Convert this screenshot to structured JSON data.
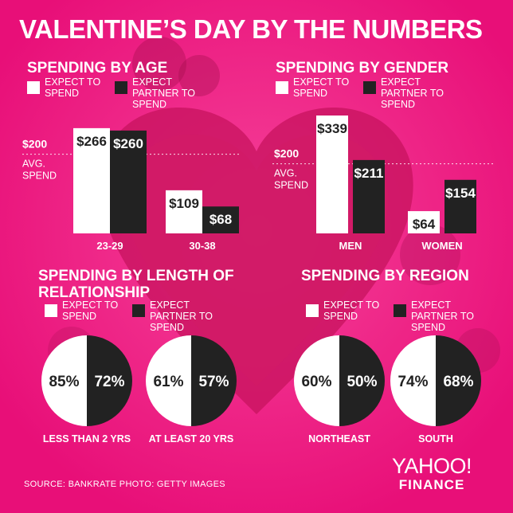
{
  "title": "VALENTINE’S DAY BY THE NUMBERS",
  "colors": {
    "background": "#f0147e",
    "expect": "#ffffff",
    "partner": "#222222",
    "accent_dark": "#a0104c"
  },
  "legend": {
    "expect": "EXPECT TO SPEND",
    "partner": "EXPECT PARTNER TO SPEND"
  },
  "footer": {
    "source": "SOURCE:  BANKRATE     PHOTO: GETTY IMAGES"
  },
  "logo": {
    "name": "YAHOO!",
    "sub": "FINANCE"
  },
  "chart_data": [
    {
      "type": "bar",
      "title": "SPENDING BY AGE",
      "categories": [
        "23-29",
        "30-38"
      ],
      "series": [
        {
          "name": "EXPECT TO SPEND",
          "values": [
            266,
            109
          ],
          "labels": [
            "$266",
            "$109"
          ]
        },
        {
          "name": "EXPECT PARTNER TO SPEND",
          "values": [
            260,
            68
          ],
          "labels": [
            "$260",
            "$68"
          ]
        }
      ],
      "reference_line": {
        "value": 200,
        "value_label": "$200",
        "label": "AVG. SPEND"
      },
      "ylim": [
        0,
        300
      ]
    },
    {
      "type": "bar",
      "title": "SPENDING BY GENDER",
      "categories": [
        "MEN",
        "WOMEN"
      ],
      "series": [
        {
          "name": "EXPECT TO SPEND",
          "values": [
            339,
            64
          ],
          "labels": [
            "$339",
            "$64"
          ]
        },
        {
          "name": "EXPECT PARTNER TO SPEND",
          "values": [
            211,
            154
          ],
          "labels": [
            "$211",
            "$154"
          ]
        }
      ],
      "reference_line": {
        "value": 200,
        "value_label": "$200",
        "label": "AVG. SPEND"
      },
      "ylim": [
        0,
        339
      ]
    },
    {
      "type": "pie",
      "title": "SPENDING BY LENGTH OF RELATIONSHIP",
      "categories": [
        "LESS THAN 2 YRS",
        "AT LEAST 20 YRS"
      ],
      "series": [
        {
          "name": "EXPECT TO SPEND",
          "values": [
            85,
            61
          ],
          "labels": [
            "85%",
            "61%"
          ]
        },
        {
          "name": "EXPECT PARTNER TO SPEND",
          "values": [
            72,
            57
          ],
          "labels": [
            "72%",
            "57%"
          ]
        }
      ]
    },
    {
      "type": "pie",
      "title": "SPENDING BY REGION",
      "categories": [
        "NORTHEAST",
        "SOUTH"
      ],
      "series": [
        {
          "name": "EXPECT TO SPEND",
          "values": [
            60,
            74
          ],
          "labels": [
            "60%",
            "74%"
          ]
        },
        {
          "name": "EXPECT PARTNER TO SPEND",
          "values": [
            50,
            68
          ],
          "labels": [
            "50%",
            "68%"
          ]
        }
      ]
    }
  ]
}
